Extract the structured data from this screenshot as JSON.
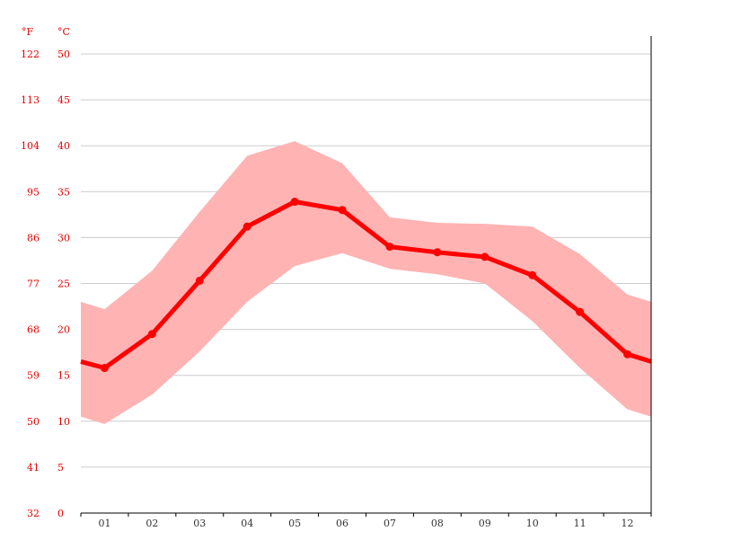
{
  "chart_data": {
    "type": "line",
    "units": {
      "fahrenheit": "°F",
      "celsius": "°C"
    },
    "categories": [
      "01",
      "02",
      "03",
      "04",
      "05",
      "06",
      "07",
      "08",
      "09",
      "10",
      "11",
      "12"
    ],
    "yticks_c": [
      "0",
      "5",
      "10",
      "15",
      "20",
      "25",
      "30",
      "35",
      "40",
      "45",
      "50"
    ],
    "yticks_f": [
      "32",
      "41",
      "50",
      "59",
      "68",
      "77",
      "86",
      "95",
      "104",
      "113",
      "122"
    ],
    "ylim": [
      0,
      50
    ],
    "grid": true,
    "series": [
      {
        "role": "average",
        "values": [
          15.8,
          19.5,
          25.3,
          31.2,
          33.9,
          33.0,
          29.0,
          28.4,
          27.9,
          25.9,
          21.9,
          17.3
        ]
      },
      {
        "role": "max",
        "values": [
          22.2,
          26.4,
          32.8,
          38.9,
          40.5,
          38.1,
          32.2,
          31.6,
          31.5,
          31.2,
          28.2,
          23.8
        ]
      },
      {
        "role": "min",
        "values": [
          9.7,
          12.9,
          17.6,
          23.0,
          26.9,
          28.3,
          26.6,
          26.0,
          25.0,
          20.9,
          15.8,
          11.3
        ]
      }
    ],
    "edge_values": {
      "average": [
        16.5,
        16.5
      ],
      "max": [
        23.0,
        23.0
      ],
      "min": [
        10.5,
        10.5
      ]
    },
    "colors": {
      "line": "#ff0000",
      "band": "#ffb3b3",
      "ticks": "#e60000"
    }
  }
}
